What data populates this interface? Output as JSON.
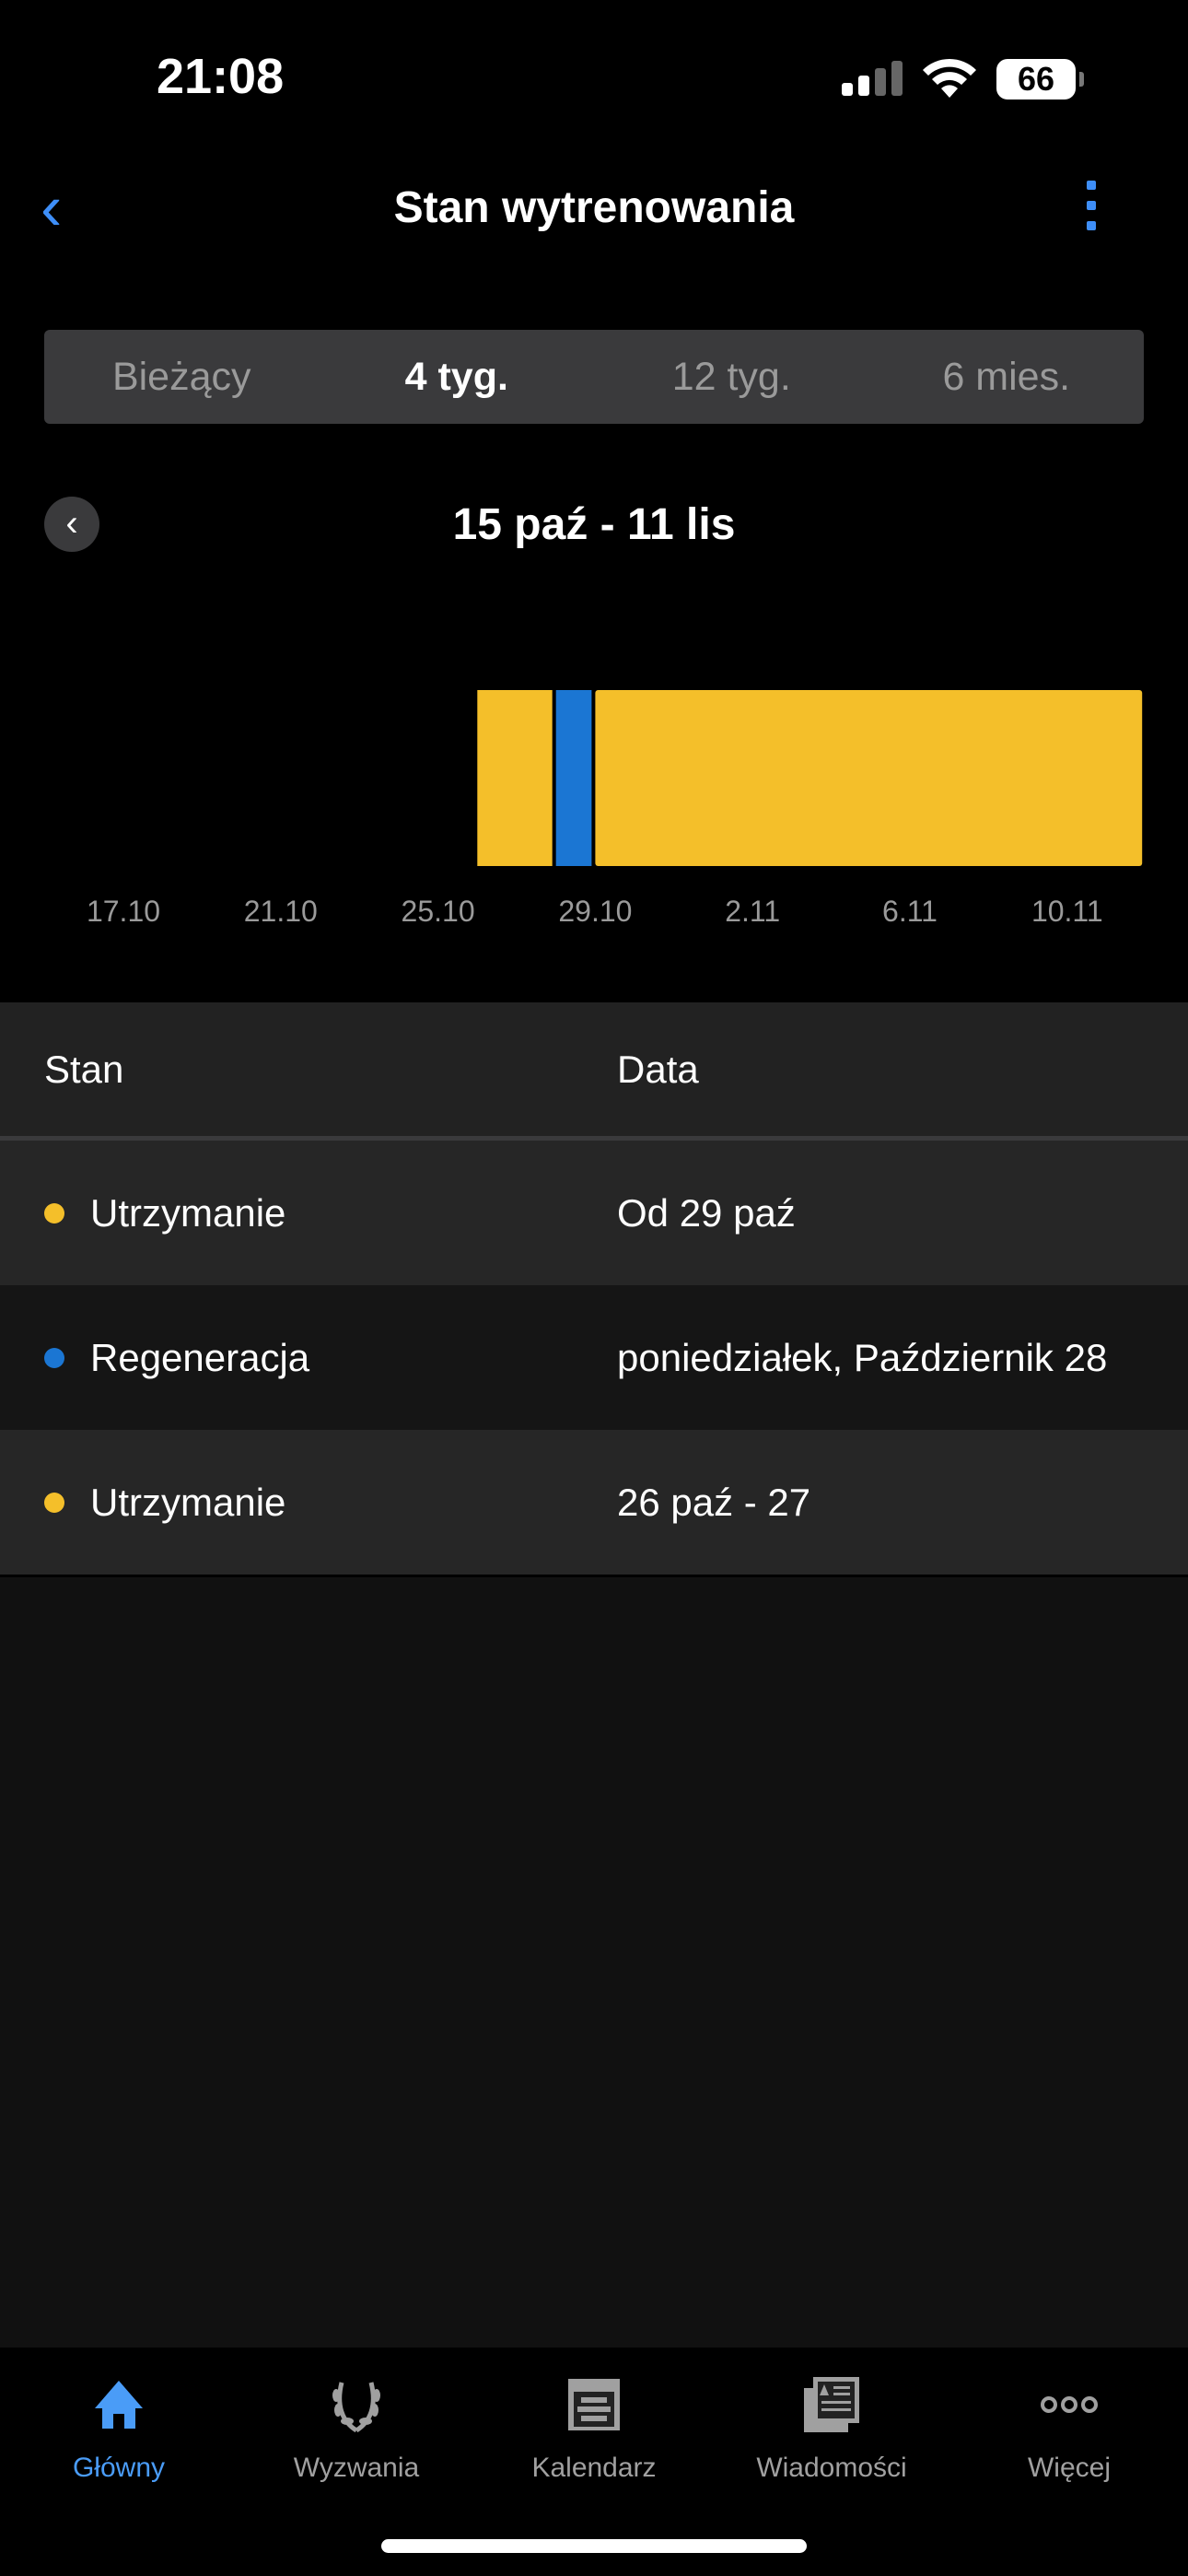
{
  "status_bar": {
    "time": "21:08",
    "battery": "66"
  },
  "header": {
    "title": "Stan wytrenowania"
  },
  "segments": [
    {
      "label": "Bieżący",
      "active": false
    },
    {
      "label": "4 tyg.",
      "active": true
    },
    {
      "label": "12 tyg.",
      "active": false
    },
    {
      "label": "6 mies.",
      "active": false
    }
  ],
  "date_range": "15 paź - 11 lis",
  "colors": {
    "maintaining": "#f4bf2a",
    "recovery": "#1b76d3",
    "accent": "#3e8ef7"
  },
  "chart_data": {
    "type": "bar",
    "orientation": "horizontal-timeline",
    "x_range": [
      "15.10",
      "11.11"
    ],
    "ticks": [
      "17.10",
      "21.10",
      "25.10",
      "29.10",
      "2.11",
      "6.11",
      "10.11"
    ],
    "segments": [
      {
        "status": "Utrzymanie",
        "start": "26.10",
        "end": "27.10",
        "color": "#f4bf2a"
      },
      {
        "status": "Regeneracja",
        "start": "28.10",
        "end": "28.10",
        "color": "#1b76d3"
      },
      {
        "status": "Utrzymanie",
        "start": "29.10",
        "end": "11.11",
        "color": "#f4bf2a"
      }
    ]
  },
  "table": {
    "headers": {
      "status": "Stan",
      "date": "Data"
    },
    "rows": [
      {
        "status": "Utrzymanie",
        "date": "Od 29 paź",
        "color": "#f4bf2a"
      },
      {
        "status": "Regeneracja",
        "date": "poniedziałek, Październik 28",
        "color": "#1b76d3"
      },
      {
        "status": "Utrzymanie",
        "date": "26 paź - 27",
        "color": "#f4bf2a"
      }
    ]
  },
  "tabbar": [
    {
      "label": "Główny",
      "icon": "home-icon",
      "active": true
    },
    {
      "label": "Wyzwania",
      "icon": "laurel-icon"
    },
    {
      "label": "Kalendarz",
      "icon": "calendar-icon"
    },
    {
      "label": "Wiadomości",
      "icon": "news-icon"
    },
    {
      "label": "Więcej",
      "icon": "more-icon"
    }
  ]
}
